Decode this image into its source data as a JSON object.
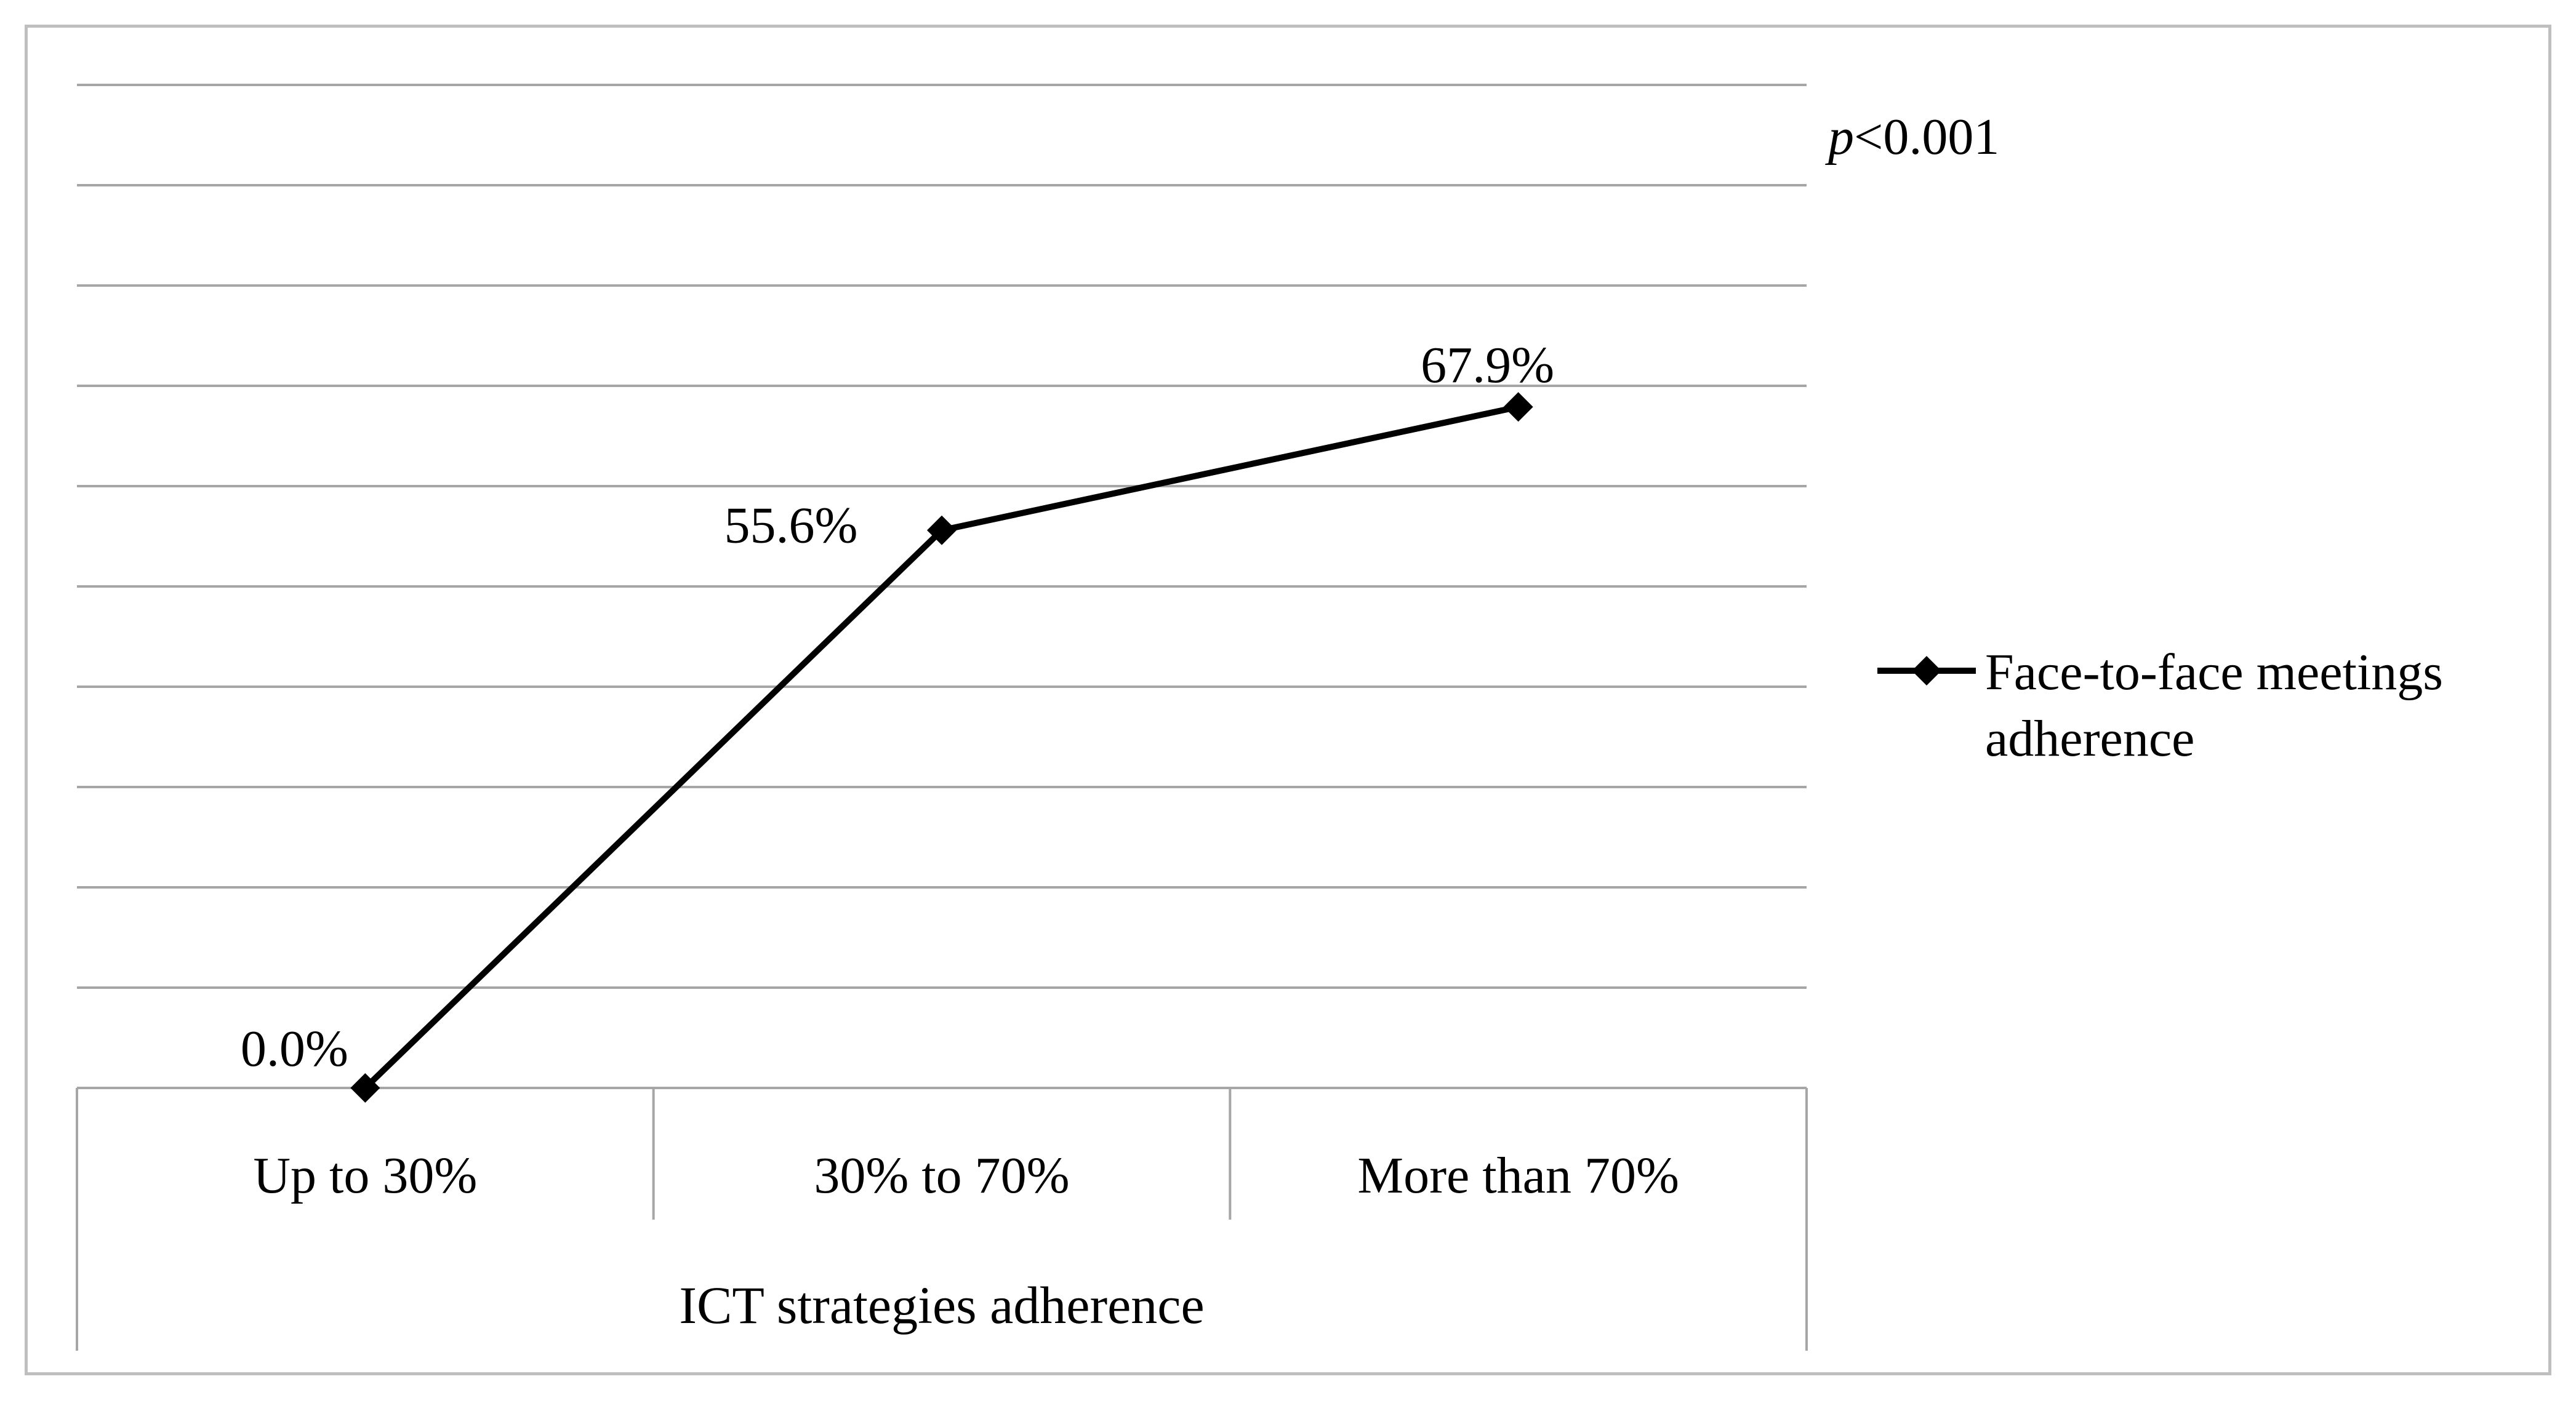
{
  "chart_data": {
    "type": "line",
    "categories": [
      "Up to 30%",
      "30% to 70%",
      "More than 70%"
    ],
    "series": [
      {
        "name": "Face-to-face meetings adherence",
        "values": [
          0.0,
          55.6,
          67.9
        ],
        "labels": [
          "0.0%",
          "55.6%",
          "67.9%"
        ],
        "color": "#000000",
        "marker": "diamond"
      }
    ],
    "xlabel": "ICT strategies adherence",
    "ylabel": "",
    "ylim": [
      0,
      100
    ],
    "grid": true,
    "y_axis_visible": false,
    "legend_position": "right",
    "annotation": {
      "prefix": "p",
      "text": "<0.001"
    }
  }
}
